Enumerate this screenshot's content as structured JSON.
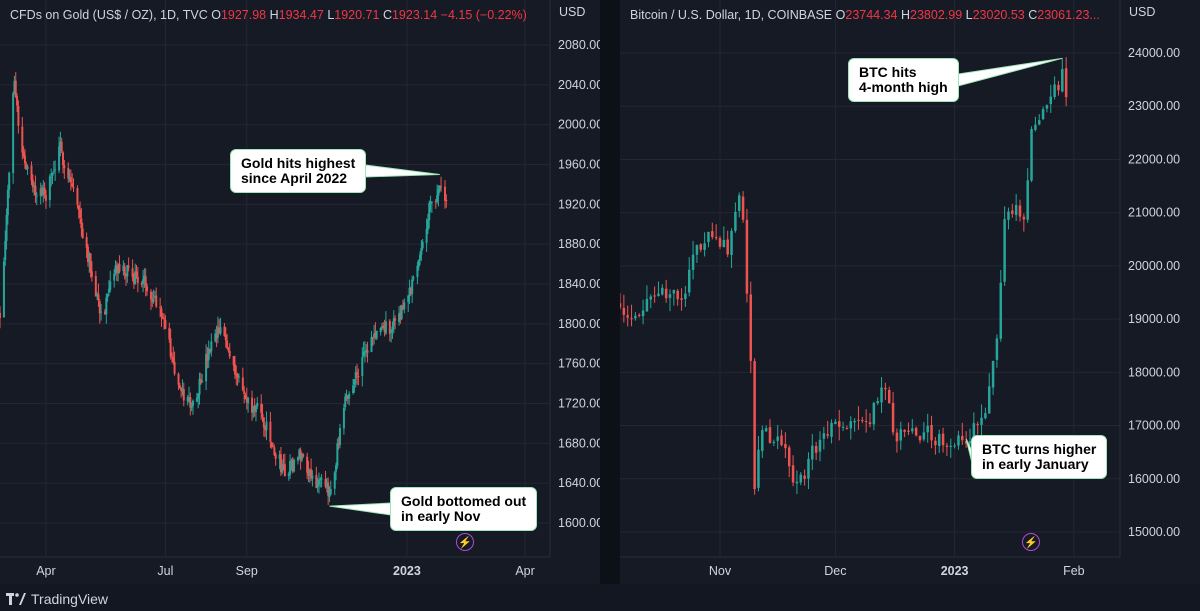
{
  "branding": {
    "name": "TradingView"
  },
  "colors": {
    "up": "#26a69a",
    "down": "#ef5350",
    "background": "#161a25",
    "grid": "#242733",
    "axis_text": "#d1d4dc",
    "callout_border": "#9ee6b8"
  },
  "chart_data": [
    {
      "type": "candlestick",
      "header": {
        "symbol": "CFDs on Gold (US$ / OZ), 1D, TVC",
        "o_label": "O",
        "o_value": "1927.98",
        "h_label": "H",
        "h_value": "1934.47",
        "l_label": "L",
        "l_value": "1920.71",
        "c_label": "C",
        "c_value": "1923.14",
        "change": "−4.15 (−0.22%)"
      },
      "y_unit": "USD",
      "ylim": [
        1580,
        2100
      ],
      "y_ticks": [
        "2080.00",
        "2040.00",
        "2000.00",
        "1960.00",
        "1920.00",
        "1880.00",
        "1840.00",
        "1800.00",
        "1760.00",
        "1720.00",
        "1680.00",
        "1640.00",
        "1600.00"
      ],
      "x_ticks": [
        "Apr",
        "Jul",
        "Sep",
        "2023",
        "Apr"
      ],
      "x_range": [
        "2022-02-25",
        "2023-04-20"
      ],
      "x_tick_dates": [
        "2022-04-01",
        "2022-07-01",
        "2022-09-01",
        "2023-01-01",
        "2023-04-01"
      ],
      "path": [
        [
          "2022-02-25",
          1810
        ],
        [
          "2022-03-03",
          1930
        ],
        [
          "2022-03-08",
          2050
        ],
        [
          "2022-03-12",
          1985
        ],
        [
          "2022-03-22",
          1935
        ],
        [
          "2022-04-01",
          1930
        ],
        [
          "2022-04-12",
          1975
        ],
        [
          "2022-04-22",
          1935
        ],
        [
          "2022-05-03",
          1870
        ],
        [
          "2022-05-14",
          1805
        ],
        [
          "2022-05-24",
          1855
        ],
        [
          "2022-06-05",
          1850
        ],
        [
          "2022-06-16",
          1840
        ],
        [
          "2022-06-28",
          1815
        ],
        [
          "2022-07-12",
          1730
        ],
        [
          "2022-07-22",
          1720
        ],
        [
          "2022-08-03",
          1770
        ],
        [
          "2022-08-12",
          1795
        ],
        [
          "2022-08-22",
          1760
        ],
        [
          "2022-09-01",
          1720
        ],
        [
          "2022-09-12",
          1710
        ],
        [
          "2022-09-22",
          1670
        ],
        [
          "2022-10-01",
          1650
        ],
        [
          "2022-10-12",
          1670
        ],
        [
          "2022-10-22",
          1645
        ],
        [
          "2022-11-03",
          1630
        ],
        [
          "2022-11-08",
          1665
        ],
        [
          "2022-11-15",
          1720
        ],
        [
          "2022-11-25",
          1755
        ],
        [
          "2022-12-08",
          1790
        ],
        [
          "2022-12-22",
          1800
        ],
        [
          "2023-01-03",
          1830
        ],
        [
          "2023-01-12",
          1880
        ],
        [
          "2023-01-20",
          1925
        ],
        [
          "2023-01-26",
          1935
        ],
        [
          "2023-01-31",
          1923
        ]
      ],
      "annotations": [
        {
          "text": "Gold hits highest\nsince April 2022",
          "date": "2023-01-26",
          "price": 1950
        },
        {
          "text": "Gold bottomed out\nin early Nov",
          "date": "2022-11-03",
          "price": 1617
        }
      ]
    },
    {
      "type": "candlestick",
      "header": {
        "symbol": "Bitcoin / U.S. Dollar, 1D, COINBASE",
        "o_label": "O",
        "o_value": "23744.34",
        "h_label": "H",
        "h_value": "23802.99",
        "l_label": "L",
        "l_value": "23020.53",
        "c_label": "C",
        "c_value": "23061.23..."
      },
      "y_unit": "USD",
      "ylim": [
        14700,
        24800
      ],
      "y_ticks": [
        "24000.00",
        "23000.00",
        "22000.00",
        "21000.00",
        "20000.00",
        "19000.00",
        "18000.00",
        "17000.00",
        "16000.00",
        "15000.00"
      ],
      "x_ticks": [
        "Nov",
        "Dec",
        "2023",
        "Feb"
      ],
      "x_range": [
        "2022-10-06",
        "2023-02-13"
      ],
      "x_tick_dates": [
        "2022-11-01",
        "2022-12-01",
        "2023-01-01",
        "2023-02-01"
      ],
      "path": [
        [
          "2022-10-06",
          19300
        ],
        [
          "2022-10-10",
          19000
        ],
        [
          "2022-10-14",
          19300
        ],
        [
          "2022-10-18",
          19500
        ],
        [
          "2022-10-22",
          19300
        ],
        [
          "2022-10-26",
          20300
        ],
        [
          "2022-10-29",
          20700
        ],
        [
          "2022-11-01",
          20500
        ],
        [
          "2022-11-03",
          20200
        ],
        [
          "2022-11-06",
          21200
        ],
        [
          "2022-11-07",
          20900
        ],
        [
          "2022-11-09",
          18200
        ],
        [
          "2022-11-10",
          15900
        ],
        [
          "2022-11-12",
          17000
        ],
        [
          "2022-11-15",
          16700
        ],
        [
          "2022-11-18",
          16600
        ],
        [
          "2022-11-21",
          15800
        ],
        [
          "2022-11-25",
          16500
        ],
        [
          "2022-11-30",
          16900
        ],
        [
          "2022-12-04",
          17000
        ],
        [
          "2022-12-10",
          17100
        ],
        [
          "2022-12-14",
          17800
        ],
        [
          "2022-12-16",
          16800
        ],
        [
          "2022-12-20",
          16800
        ],
        [
          "2022-12-25",
          16850
        ],
        [
          "2022-12-30",
          16600
        ],
        [
          "2023-01-03",
          16680
        ],
        [
          "2023-01-06",
          16900
        ],
        [
          "2023-01-09",
          17200
        ],
        [
          "2023-01-12",
          18500
        ],
        [
          "2023-01-14",
          20900
        ],
        [
          "2023-01-17",
          21150
        ],
        [
          "2023-01-19",
          20800
        ],
        [
          "2023-01-21",
          22700
        ],
        [
          "2023-01-24",
          22900
        ],
        [
          "2023-01-26",
          23100
        ],
        [
          "2023-01-28",
          23400
        ],
        [
          "2023-01-29",
          23750
        ],
        [
          "2023-01-30",
          23100
        ]
      ],
      "annotations": [
        {
          "text": "BTC hits\n4-month high",
          "date": "2023-01-29",
          "price": 23900
        },
        {
          "text": "BTC turns higher\nin early January",
          "date": "2023-01-04",
          "price": 16750
        }
      ]
    }
  ]
}
